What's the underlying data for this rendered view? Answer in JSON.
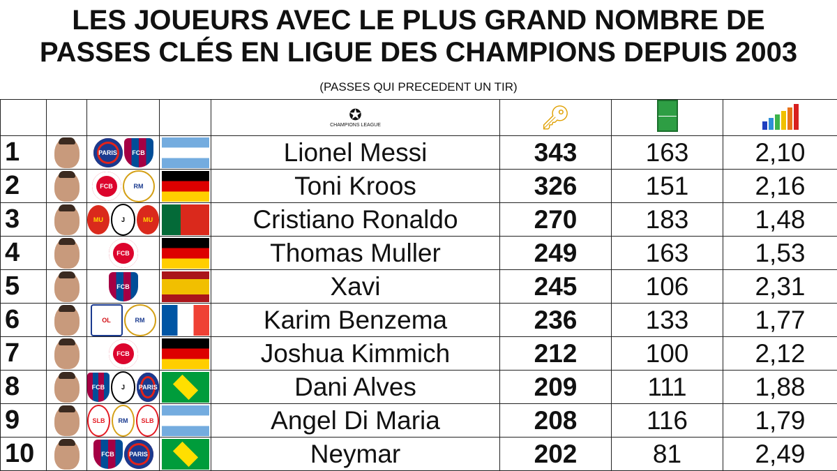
{
  "title_line1": "LES JOUEURS AVEC LE PLUS GRAND NOMBRE DE",
  "title_line2": "PASSES CLÉS EN LIGUE DES CHAMPIONS DEPUIS 2003",
  "subtitle": "(PASSES QUI PRECEDENT UN TIR)",
  "header": {
    "competition_icon": "champions-league-logo-icon",
    "competition_text": "CHAMPIONS LEAGUE",
    "key_icon": "key-icon",
    "matches_icon": "football-pitch-icon",
    "ratio_icon": "bar-chart-growth-icon"
  },
  "rows": [
    {
      "rank": "1",
      "name": "Lionel Messi",
      "key_passes": "343",
      "matches": "163",
      "ratio": "2,10",
      "clubs": [
        "psg",
        "barca"
      ],
      "flag": "ar"
    },
    {
      "rank": "2",
      "name": "Toni Kroos",
      "key_passes": "326",
      "matches": "151",
      "ratio": "2,16",
      "clubs": [
        "bayern",
        "real"
      ],
      "flag": "de"
    },
    {
      "rank": "3",
      "name": "Cristiano Ronaldo",
      "key_passes": "270",
      "matches": "183",
      "ratio": "1,48",
      "clubs": [
        "manu",
        "juve",
        "manu"
      ],
      "flag": "pt"
    },
    {
      "rank": "4",
      "name": "Thomas Muller",
      "key_passes": "249",
      "matches": "163",
      "ratio": "1,53",
      "clubs": [
        "bayern"
      ],
      "flag": "de"
    },
    {
      "rank": "5",
      "name": "Xavi",
      "key_passes": "245",
      "matches": "106",
      "ratio": "2,31",
      "clubs": [
        "barca"
      ],
      "flag": "es"
    },
    {
      "rank": "6",
      "name": "Karim Benzema",
      "key_passes": "236",
      "matches": "133",
      "ratio": "1,77",
      "clubs": [
        "lyon",
        "real"
      ],
      "flag": "fr"
    },
    {
      "rank": "7",
      "name": "Joshua Kimmich",
      "key_passes": "212",
      "matches": "100",
      "ratio": "2,12",
      "clubs": [
        "bayern"
      ],
      "flag": "de"
    },
    {
      "rank": "8",
      "name": "Dani Alves",
      "key_passes": "209",
      "matches": "111",
      "ratio": "1,88",
      "clubs": [
        "barca",
        "juve",
        "psg"
      ],
      "flag": "br"
    },
    {
      "rank": "9",
      "name": "Angel Di Maria",
      "key_passes": "208",
      "matches": "116",
      "ratio": "1,79",
      "clubs": [
        "benfica",
        "real",
        "benfica"
      ],
      "flag": "ar"
    },
    {
      "rank": "10",
      "name": "Neymar",
      "key_passes": "202",
      "matches": "81",
      "ratio": "2,49",
      "clubs": [
        "barca",
        "psg"
      ],
      "flag": "br"
    }
  ],
  "colors": {
    "key_icon": "#e0a000",
    "pitch_icon": "#2e9e44",
    "bars": [
      "#1f3fbf",
      "#2f8fd8",
      "#3cb44b",
      "#f0c000",
      "#e8731b",
      "#d8201f"
    ]
  }
}
